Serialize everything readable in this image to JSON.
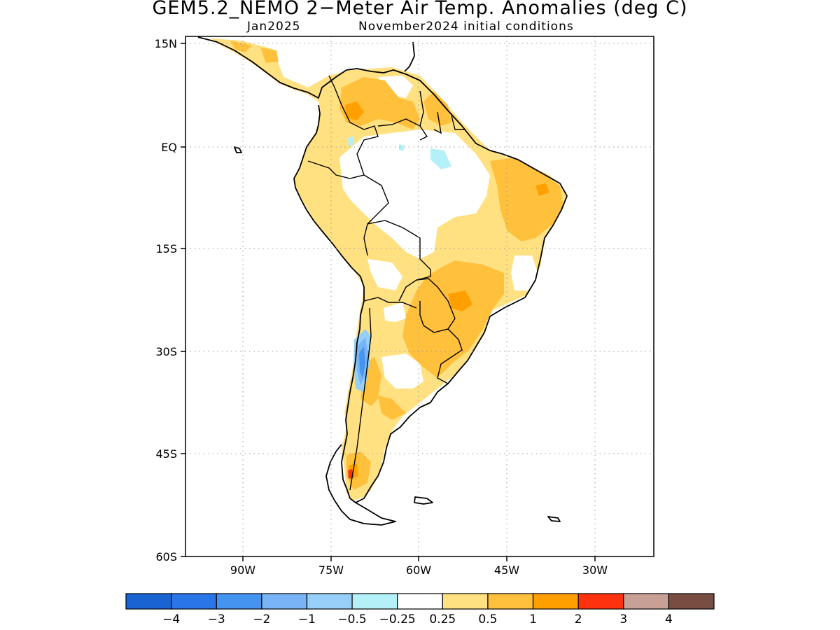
{
  "title": "GEM5.2_NEMO 2−Meter Air Temp. Anomalies (deg C)",
  "subtitle_left": "Jan2025",
  "subtitle_right": "November2024 initial conditions",
  "map": {
    "region": "South America",
    "lat_range": [
      "60S",
      "15N"
    ],
    "lon_range": [
      "100W",
      "20W"
    ],
    "grid": "dotted",
    "y_tick_labels": [
      "15N",
      "EQ",
      "15S",
      "30S",
      "45S",
      "60S"
    ],
    "x_tick_labels": [
      "90W",
      "75W",
      "60W",
      "45W",
      "30W"
    ]
  },
  "colorbar": {
    "colors": [
      "#1a64d2",
      "#2a76e8",
      "#4494f0",
      "#78b4f6",
      "#96cff8",
      "#b4f0f8",
      "#ffffff",
      "#ffe182",
      "#ffc03c",
      "#ffa000",
      "#ff3210",
      "#c8a096",
      "#784e42"
    ],
    "labels": [
      "−4",
      "−3",
      "−2",
      "−1",
      "−0.5",
      "−0.25",
      "0.25",
      "0.5",
      "1",
      "2",
      "3",
      "4"
    ]
  },
  "chart_data": {
    "type": "heatmap",
    "title": "GEM5.2_NEMO 2−Meter Air Temp. Anomalies (deg C)",
    "x_range": [
      -100,
      -20
    ],
    "y_range": [
      -60,
      15
    ],
    "contour_levels": [
      -4,
      -3,
      -2,
      -1,
      -0.5,
      -0.25,
      0.25,
      0.5,
      1,
      2,
      3,
      4
    ],
    "regions": [
      {
        "area": "Northern South America (Colombia/Venezuela)",
        "anomaly_range": [
          0.5,
          1
        ]
      },
      {
        "area": "Northeast Brazil",
        "anomaly_range": [
          0.5,
          1
        ]
      },
      {
        "area": "Central/Southeast Brazil and Paraguay",
        "anomaly_range": [
          0.5,
          2
        ]
      },
      {
        "area": "Amazon basin",
        "anomaly_range": [
          -0.25,
          0.25
        ]
      },
      {
        "area": "Central Andes (Chile/Argentina)",
        "anomaly_range": [
          -3,
          -0.5
        ]
      },
      {
        "area": "Patagonia",
        "anomaly_range": [
          0.5,
          2
        ]
      },
      {
        "area": "Peru coast and Andes",
        "anomaly_range": [
          0.25,
          0.5
        ]
      }
    ]
  }
}
